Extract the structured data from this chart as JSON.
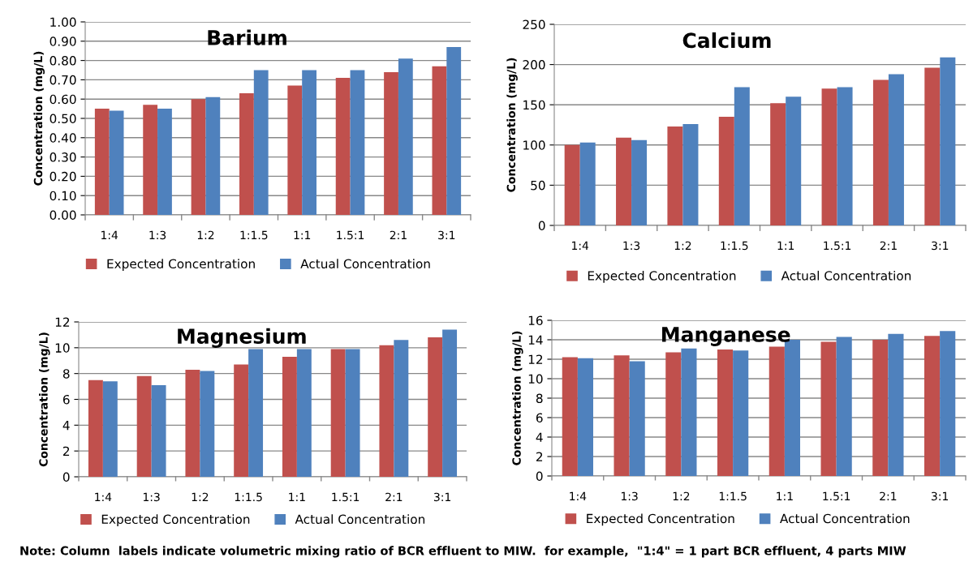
{
  "chart_data": [
    {
      "type": "bar",
      "title": "Barium",
      "ylabel": "Concentration (mg/L)",
      "categories": [
        "1:4",
        "1:3",
        "1:2",
        "1:1.5",
        "1:1",
        "1.5:1",
        "2:1",
        "3:1"
      ],
      "series": [
        {
          "name": "Expected Concentration",
          "color": "#c0504d",
          "values": [
            0.55,
            0.57,
            0.6,
            0.63,
            0.67,
            0.71,
            0.74,
            0.77
          ]
        },
        {
          "name": "Actual Concentration",
          "color": "#4f81bd",
          "values": [
            0.54,
            0.55,
            0.61,
            0.75,
            0.75,
            0.75,
            0.81,
            0.87
          ]
        }
      ],
      "ylim": [
        0,
        1
      ],
      "yticks": [
        {
          "value": 0,
          "label": "0.00"
        },
        {
          "value": 0.1,
          "label": "0.10"
        },
        {
          "value": 0.2,
          "label": "0.20"
        },
        {
          "value": 0.3,
          "label": "0.30"
        },
        {
          "value": 0.4,
          "label": "0.40"
        },
        {
          "value": 0.5,
          "label": "0.50"
        },
        {
          "value": 0.6,
          "label": "0.60"
        },
        {
          "value": 0.7,
          "label": "0.70"
        },
        {
          "value": 0.8,
          "label": "0.80"
        },
        {
          "value": 0.9,
          "label": "0.90"
        },
        {
          "value": 1,
          "label": "1.00"
        }
      ],
      "grid": "y",
      "legend": "bottom"
    },
    {
      "type": "bar",
      "title": "Calcium",
      "ylabel": "Concentration (mg/L)",
      "categories": [
        "1:4",
        "1:3",
        "1:2",
        "1:1.5",
        "1:1",
        "1.5:1",
        "2:1",
        "3:1"
      ],
      "series": [
        {
          "name": "Expected Concentration",
          "color": "#c0504d",
          "values": [
            100,
            109,
            123,
            135,
            152,
            170,
            181,
            196
          ]
        },
        {
          "name": "Actual Concentration",
          "color": "#4f81bd",
          "values": [
            103,
            106,
            126,
            172,
            160,
            172,
            188,
            209
          ]
        }
      ],
      "ylim": [
        0,
        250
      ],
      "yticks": [
        0,
        50,
        100,
        150,
        200,
        250
      ],
      "grid": "y",
      "legend": "bottom"
    },
    {
      "type": "bar",
      "title": "Magnesium",
      "ylabel": "Concentration (mg/L)",
      "categories": [
        "1:4",
        "1:3",
        "1:2",
        "1:1.5",
        "1:1",
        "1.5:1",
        "2:1",
        "3:1"
      ],
      "series": [
        {
          "name": "Expected Concentration",
          "color": "#c0504d",
          "values": [
            7.5,
            7.8,
            8.3,
            8.7,
            9.3,
            9.9,
            10.2,
            10.8
          ]
        },
        {
          "name": "Actual Concentration",
          "color": "#4f81bd",
          "values": [
            7.4,
            7.1,
            8.2,
            9.9,
            9.9,
            9.9,
            10.6,
            11.4
          ]
        }
      ],
      "ylim": [
        0,
        12
      ],
      "yticks": [
        0,
        2,
        4,
        6,
        8,
        10,
        12
      ],
      "grid": "y",
      "legend": "bottom"
    },
    {
      "type": "bar",
      "title": "Manganese",
      "ylabel": "Concentration (mg/L)",
      "categories": [
        "1:4",
        "1:3",
        "1:2",
        "1:1.5",
        "1:1",
        "1.5:1",
        "2:1",
        "3:1"
      ],
      "series": [
        {
          "name": "Expected Concentration",
          "color": "#c0504d",
          "values": [
            12.2,
            12.4,
            12.7,
            13.0,
            13.3,
            13.8,
            14.0,
            14.4
          ]
        },
        {
          "name": "Actual Concentration",
          "color": "#4f81bd",
          "values": [
            12.1,
            11.8,
            13.1,
            12.9,
            14.0,
            14.3,
            14.6,
            14.9
          ]
        }
      ],
      "ylim": [
        0,
        16
      ],
      "yticks": [
        0,
        2,
        4,
        6,
        8,
        10,
        12,
        14,
        16
      ],
      "grid": "y",
      "legend": "bottom",
      "annotations": [
        "Note: Column  labels indicate volumetric mixing ratio of BCR effluent to MIW.  for example,  \"1:4\" = 1 part BCR effluent, 4 parts MIW"
      ]
    }
  ]
}
